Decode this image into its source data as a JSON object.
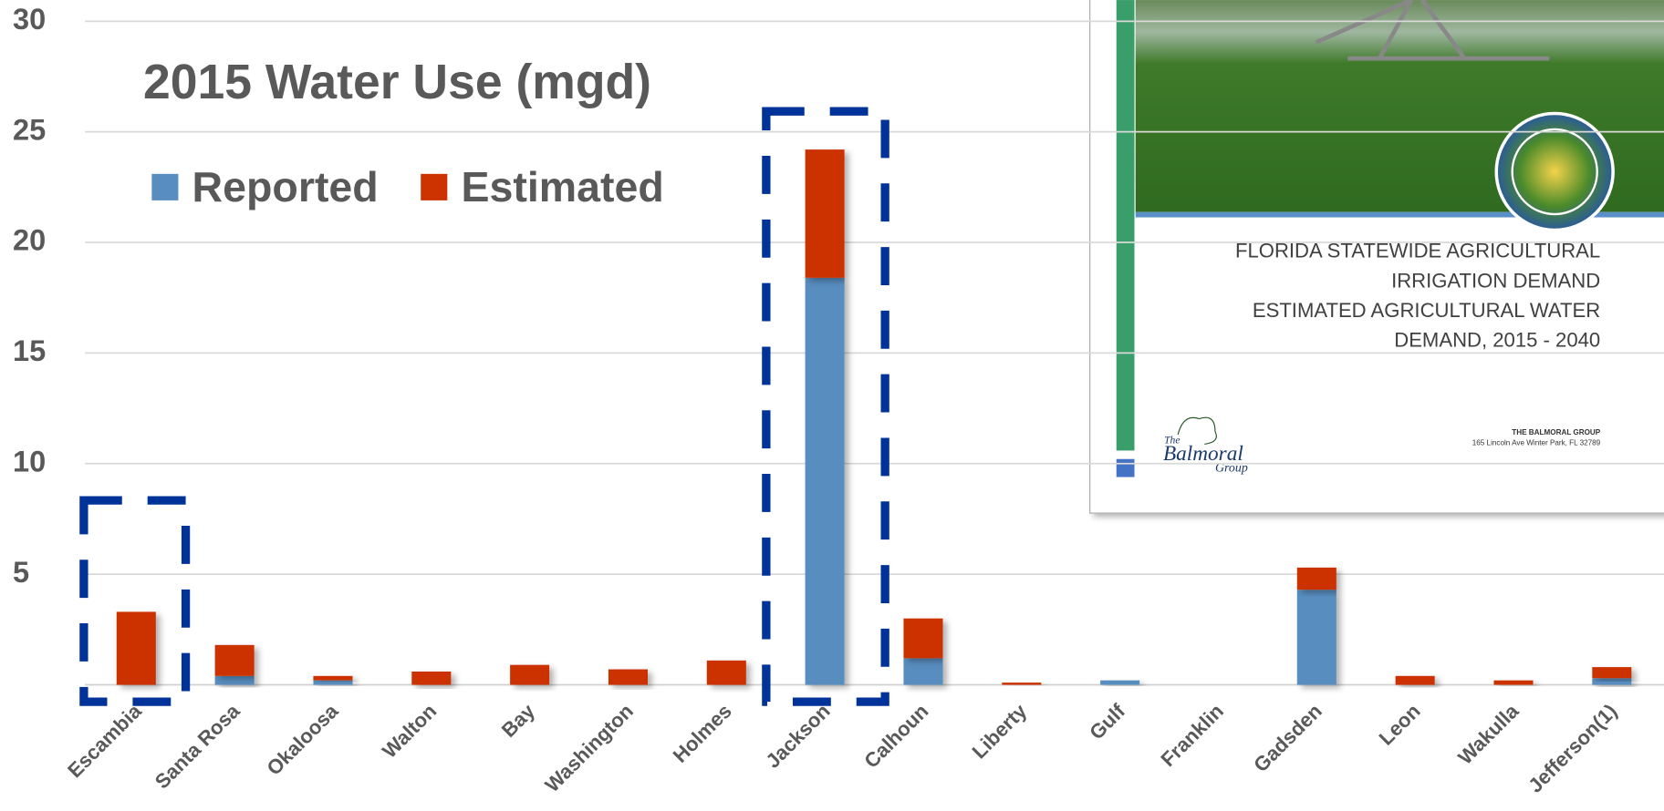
{
  "chart_data": {
    "type": "stacked_bar",
    "title": "2015 Water Use (mgd)",
    "categories": [
      "Escambia",
      "Santa Rosa",
      "Okaloosa",
      "Walton",
      "Bay",
      "Washington",
      "Holmes",
      "Jackson",
      "Calhoun",
      "Liberty",
      "Gulf",
      "Franklin",
      "Gadsden",
      "Leon",
      "Wakulla",
      "Jefferson(1)"
    ],
    "series": [
      {
        "name": "Reported",
        "color": "#588dbf",
        "values": [
          0,
          0.4,
          0.2,
          0,
          0,
          0,
          0,
          18.4,
          1.2,
          0,
          0.2,
          0,
          4.3,
          0,
          0,
          0.3
        ]
      },
      {
        "name": "Estimated",
        "color": "#cc3300",
        "values": [
          3.3,
          1.4,
          0.2,
          0.6,
          0.9,
          0.7,
          1.1,
          5.8,
          1.8,
          0.1,
          0,
          0,
          1.0,
          0.4,
          0.2,
          0.5
        ]
      }
    ],
    "ylim": [
      0,
      30
    ],
    "yticks": [
      5,
      10,
      15,
      20,
      25,
      30
    ],
    "grid": true
  },
  "inset": {
    "title_lines": [
      "FLORIDA STATEWIDE AGRICULTURAL",
      "IRRIGATION DEMAND",
      "ESTIMATED AGRICULTURAL WATER",
      "DEMAND, 2015 - 2040"
    ],
    "company": "THE BALMORAL GROUP",
    "address": "165 Lincoln Ave Winter Park, FL 32789",
    "logo": {
      "the": "The",
      "name": "Balmoral",
      "group": "Group"
    }
  }
}
